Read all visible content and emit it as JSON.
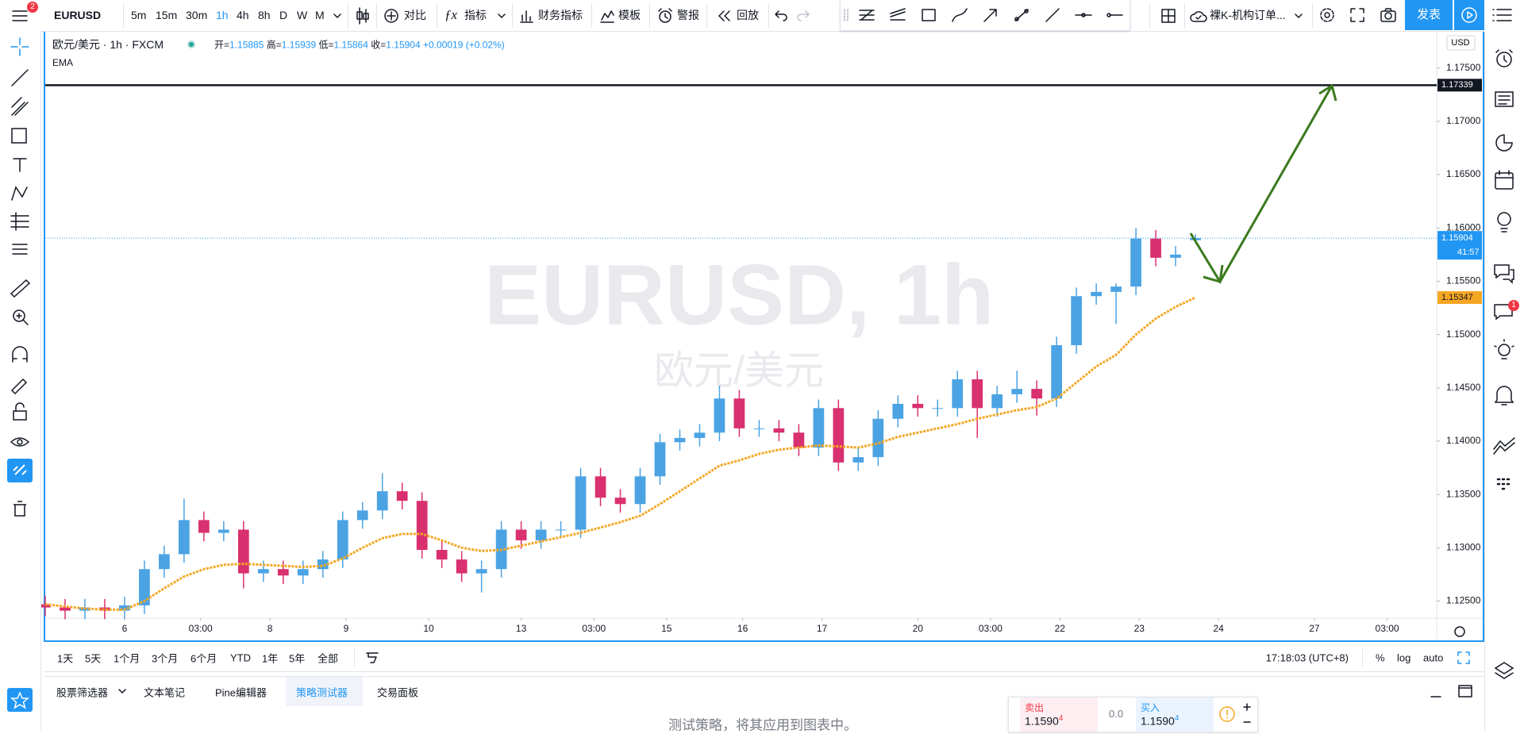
{
  "toolbar": {
    "badge": "2",
    "symbol": "EURUSD",
    "intervals": [
      "5m",
      "15m",
      "30m",
      "1h",
      "4h",
      "8h",
      "D",
      "W",
      "M"
    ],
    "compare": "对比",
    "indicators": "指标",
    "financials": "财务指标",
    "templates": "模板",
    "alerts": "警报",
    "replay": "回放",
    "layout": "裸K-机构订单...",
    "publish": "发表"
  },
  "legend": {
    "title": "欧元/美元 · 1h · FXCM",
    "ohlc": [
      {
        "label": "开=",
        "value": "1.15885"
      },
      {
        "label": "高=",
        "value": "1.15939"
      },
      {
        "label": "低=",
        "value": "1.15864"
      },
      {
        "label": "收=",
        "value": "1.15904"
      }
    ],
    "change": "+0.00019 (+0.02%)"
  },
  "watermark": {
    "symbol": "EURUSD, 1h",
    "description": "欧元/美元"
  },
  "currency": "USD",
  "countdown": "41:57",
  "side_badge": "1",
  "chart_data": {
    "type": "candlestick",
    "up_color": "#4ba3e3",
    "down_color": "#d9306f",
    "grid": false,
    "x": [
      0,
      6,
      12,
      18,
      24,
      30,
      36,
      42,
      48,
      54,
      60,
      66,
      72,
      78,
      84,
      90,
      96,
      102,
      108,
      114,
      120,
      126,
      132,
      138,
      144,
      150,
      156,
      162,
      168,
      174,
      180,
      186,
      192,
      198,
      204,
      210,
      216,
      222,
      228,
      234,
      240,
      246,
      252,
      258,
      264,
      270,
      276,
      282,
      288,
      294,
      300,
      306,
      312,
      318,
      324,
      330,
      336,
      342,
      348
    ],
    "open": [
      1.1247,
      1.1244,
      1.1241,
      1.1244,
      1.1241,
      1.1246,
      1.128,
      1.1294,
      1.1326,
      1.1314,
      1.1317,
      1.1276,
      1.128,
      1.1274,
      1.128,
      1.1289,
      1.1326,
      1.1335,
      1.1353,
      1.1344,
      1.1298,
      1.1289,
      1.1276,
      1.128,
      1.1317,
      1.1307,
      1.1317,
      1.1317,
      1.1367,
      1.1347,
      1.1341,
      1.1367,
      1.1399,
      1.1403,
      1.1408,
      1.144,
      1.1412,
      1.1412,
      1.1408,
      1.1394,
      1.1431,
      1.138,
      1.1385,
      1.1421,
      1.1435,
      1.1431,
      1.1431,
      1.1458,
      1.1431,
      1.1444,
      1.1449,
      1.144,
      1.149,
      1.1536,
      1.154,
      1.1545,
      1.159,
      1.1572,
      1.15885
    ],
    "high": [
      1.1255,
      1.1252,
      1.1252,
      1.1252,
      1.1254,
      1.1288,
      1.1302,
      1.1346,
      1.1334,
      1.1325,
      1.1325,
      1.1288,
      1.1288,
      1.1288,
      1.1297,
      1.1334,
      1.1343,
      1.137,
      1.1361,
      1.1352,
      1.1306,
      1.1297,
      1.1288,
      1.1325,
      1.1325,
      1.1325,
      1.1325,
      1.1375,
      1.1375,
      1.1355,
      1.1375,
      1.1407,
      1.1411,
      1.1416,
      1.1452,
      1.1448,
      1.142,
      1.142,
      1.1416,
      1.1439,
      1.1439,
      1.1393,
      1.1429,
      1.1443,
      1.1443,
      1.1439,
      1.1466,
      1.1466,
      1.1452,
      1.1466,
      1.1457,
      1.1498,
      1.1544,
      1.1548,
      1.1548,
      1.16,
      1.1598,
      1.1583,
      1.15939
    ],
    "low": [
      1.1236,
      1.1233,
      1.1233,
      1.1233,
      1.1233,
      1.1238,
      1.1272,
      1.1286,
      1.1306,
      1.1306,
      1.1262,
      1.1268,
      1.1266,
      1.1266,
      1.1272,
      1.1281,
      1.1318,
      1.1327,
      1.1336,
      1.129,
      1.1281,
      1.1268,
      1.1258,
      1.1272,
      1.1299,
      1.1299,
      1.1309,
      1.1309,
      1.1339,
      1.1333,
      1.1333,
      1.1359,
      1.1391,
      1.1395,
      1.14,
      1.1404,
      1.1404,
      1.14,
      1.1386,
      1.1386,
      1.1372,
      1.1372,
      1.1377,
      1.1413,
      1.1423,
      1.1423,
      1.1423,
      1.1403,
      1.1423,
      1.1436,
      1.1424,
      1.1432,
      1.1482,
      1.1528,
      1.151,
      1.1537,
      1.1564,
      1.1564,
      1.15864
    ],
    "close": [
      1.1244,
      1.1241,
      1.1244,
      1.1241,
      1.1246,
      1.128,
      1.1294,
      1.1326,
      1.1314,
      1.1317,
      1.1276,
      1.128,
      1.1274,
      1.128,
      1.1289,
      1.1326,
      1.1335,
      1.1353,
      1.1344,
      1.1298,
      1.1289,
      1.1276,
      1.128,
      1.1317,
      1.1307,
      1.1317,
      1.1317,
      1.1367,
      1.1347,
      1.1341,
      1.1367,
      1.1399,
      1.1403,
      1.1408,
      1.144,
      1.1412,
      1.1412,
      1.1408,
      1.1394,
      1.1431,
      1.138,
      1.1385,
      1.1421,
      1.1435,
      1.1431,
      1.1431,
      1.1458,
      1.1431,
      1.1444,
      1.1449,
      1.144,
      1.149,
      1.1536,
      1.154,
      1.1545,
      1.159,
      1.1572,
      1.1575,
      1.15904
    ],
    "series": [
      {
        "name": "EMA",
        "color": "#f5a623",
        "values": [
          1.1247,
          1.1245,
          1.1243,
          1.1242,
          1.1242,
          1.125,
          1.1262,
          1.1273,
          1.128,
          1.1284,
          1.1285,
          1.1284,
          1.1283,
          1.1282,
          1.1283,
          1.129,
          1.13,
          1.1309,
          1.1313,
          1.1313,
          1.1307,
          1.13,
          1.1297,
          1.1298,
          1.1302,
          1.1306,
          1.131,
          1.1314,
          1.1319,
          1.1324,
          1.133,
          1.1341,
          1.1353,
          1.1365,
          1.1377,
          1.1382,
          1.1388,
          1.1392,
          1.1394,
          1.1396,
          1.1395,
          1.1394,
          1.1398,
          1.1404,
          1.1408,
          1.1412,
          1.1416,
          1.1421,
          1.1425,
          1.1429,
          1.1432,
          1.144,
          1.1455,
          1.147,
          1.1481,
          1.15,
          1.1515,
          1.1526,
          1.15347
        ]
      }
    ],
    "hline": {
      "value": 1.17339,
      "color": "#131722"
    },
    "last_price_color": "#2196f3",
    "xlim": [
      0,
      421
    ],
    "ylim": [
      1.1234,
      1.1784
    ],
    "yticks": [
      {
        "value": 1.125,
        "label": "1.12500"
      },
      {
        "value": 1.13,
        "label": "1.13000"
      },
      {
        "value": 1.135,
        "label": "1.13500"
      },
      {
        "value": 1.14,
        "label": "1.14000"
      },
      {
        "value": 1.145,
        "label": "1.14500"
      },
      {
        "value": 1.15,
        "label": "1.15000"
      },
      {
        "value": 1.155,
        "label": "1.15500"
      },
      {
        "value": 1.16,
        "label": "1.16000"
      },
      {
        "value": 1.165,
        "label": "1.16500"
      },
      {
        "value": 1.17,
        "label": "1.17000"
      },
      {
        "value": 1.175,
        "label": "1.17500"
      }
    ],
    "xticks": [
      {
        "value": 24,
        "label": "6"
      },
      {
        "value": 47,
        "label": "03:00"
      },
      {
        "value": 68,
        "label": "8"
      },
      {
        "value": 91,
        "label": "9"
      },
      {
        "value": 116,
        "label": "10"
      },
      {
        "value": 144,
        "label": "13"
      },
      {
        "value": 166,
        "label": "03:00"
      },
      {
        "value": 188,
        "label": "15"
      },
      {
        "value": 211,
        "label": "16"
      },
      {
        "value": 235,
        "label": "17"
      },
      {
        "value": 264,
        "label": "20"
      },
      {
        "value": 286,
        "label": "03:00"
      },
      {
        "value": 307,
        "label": "22"
      },
      {
        "value": 331,
        "label": "23"
      },
      {
        "value": 355,
        "label": "24"
      },
      {
        "value": 384,
        "label": "27"
      },
      {
        "value": 406,
        "label": "03:00"
      }
    ]
  },
  "range_bar": {
    "ranges": [
      "1天",
      "5天",
      "1个月",
      "3个月",
      "6个月",
      "YTD",
      "1年",
      "5年",
      "全部"
    ],
    "clock": "17:18:03 (UTC+8)",
    "scales": [
      "%",
      "log",
      "auto"
    ]
  },
  "panel": {
    "tabs": [
      "股票筛选器",
      "文本笔记",
      "Pine编辑器",
      "策略测试器",
      "交易面板"
    ],
    "message": "测试策略，将其应用到图表中。"
  },
  "trade": {
    "sell": "卖出",
    "sell_price": "1.1590",
    "sell_pip": "4",
    "spread": "0.0",
    "buy": "买入",
    "buy_price": "1.1590",
    "buy_pip": "4"
  }
}
